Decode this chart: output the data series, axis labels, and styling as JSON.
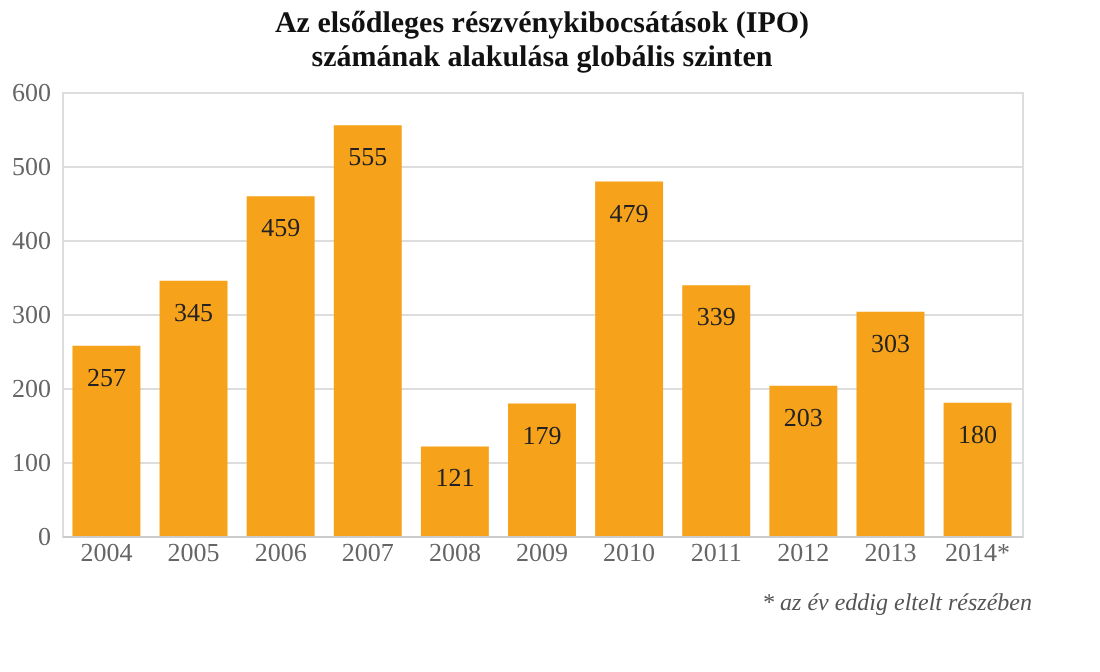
{
  "chart_data": {
    "type": "bar",
    "title": "Az elsődleges részvénykibocsátások (IPO) számának alakulása globális szinten",
    "categories": [
      "2004",
      "2005",
      "2006",
      "2007",
      "2008",
      "2009",
      "2010",
      "2011",
      "2012",
      "2013",
      "2014*"
    ],
    "values": [
      257,
      345,
      459,
      555,
      121,
      179,
      479,
      339,
      203,
      303,
      180
    ],
    "color": "#f7a21b",
    "ylim": [
      0,
      600
    ],
    "yticks": [
      0,
      100,
      200,
      300,
      400,
      500,
      600
    ],
    "grid": "y",
    "data_labels": true,
    "annotations": [
      "* az év eddig eltelt részében"
    ]
  }
}
